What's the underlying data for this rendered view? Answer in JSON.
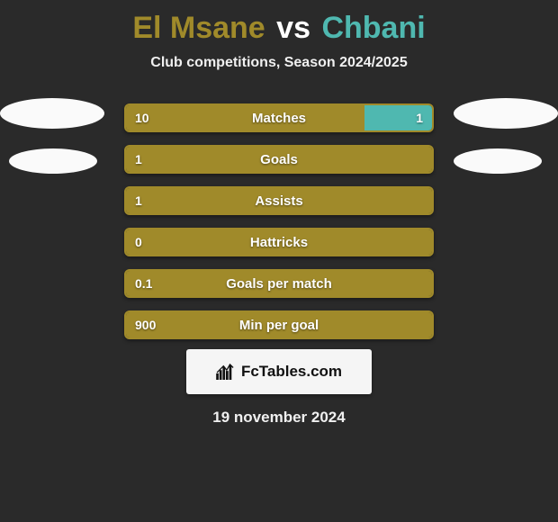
{
  "title": {
    "player1": "El Msane",
    "vs": "vs",
    "player2": "Chbani",
    "player1_color": "#a08a2a",
    "vs_color": "#ffffff",
    "player2_color": "#4fb8b0"
  },
  "subtitle": "Club competitions, Season 2024/2025",
  "colors": {
    "left": "#a08a2a",
    "right": "#4fb8b0",
    "background": "#2a2a2a",
    "text": "#f0f0f0"
  },
  "bars": [
    {
      "label": "Matches",
      "leftVal": "10",
      "rightVal": "1",
      "leftPct": 78,
      "rightPct": 22,
      "showRight": true
    },
    {
      "label": "Goals",
      "leftVal": "1",
      "rightVal": "",
      "leftPct": 100,
      "rightPct": 0,
      "showRight": false
    },
    {
      "label": "Assists",
      "leftVal": "1",
      "rightVal": "",
      "leftPct": 100,
      "rightPct": 0,
      "showRight": false
    },
    {
      "label": "Hattricks",
      "leftVal": "0",
      "rightVal": "",
      "leftPct": 100,
      "rightPct": 0,
      "showRight": false
    },
    {
      "label": "Goals per match",
      "leftVal": "0.1",
      "rightVal": "",
      "leftPct": 100,
      "rightPct": 0,
      "showRight": false
    },
    {
      "label": "Min per goal",
      "leftVal": "900",
      "rightVal": "",
      "leftPct": 100,
      "rightPct": 0,
      "showRight": false
    }
  ],
  "logo": {
    "text": "FcTables.com"
  },
  "date": "19 november 2024"
}
